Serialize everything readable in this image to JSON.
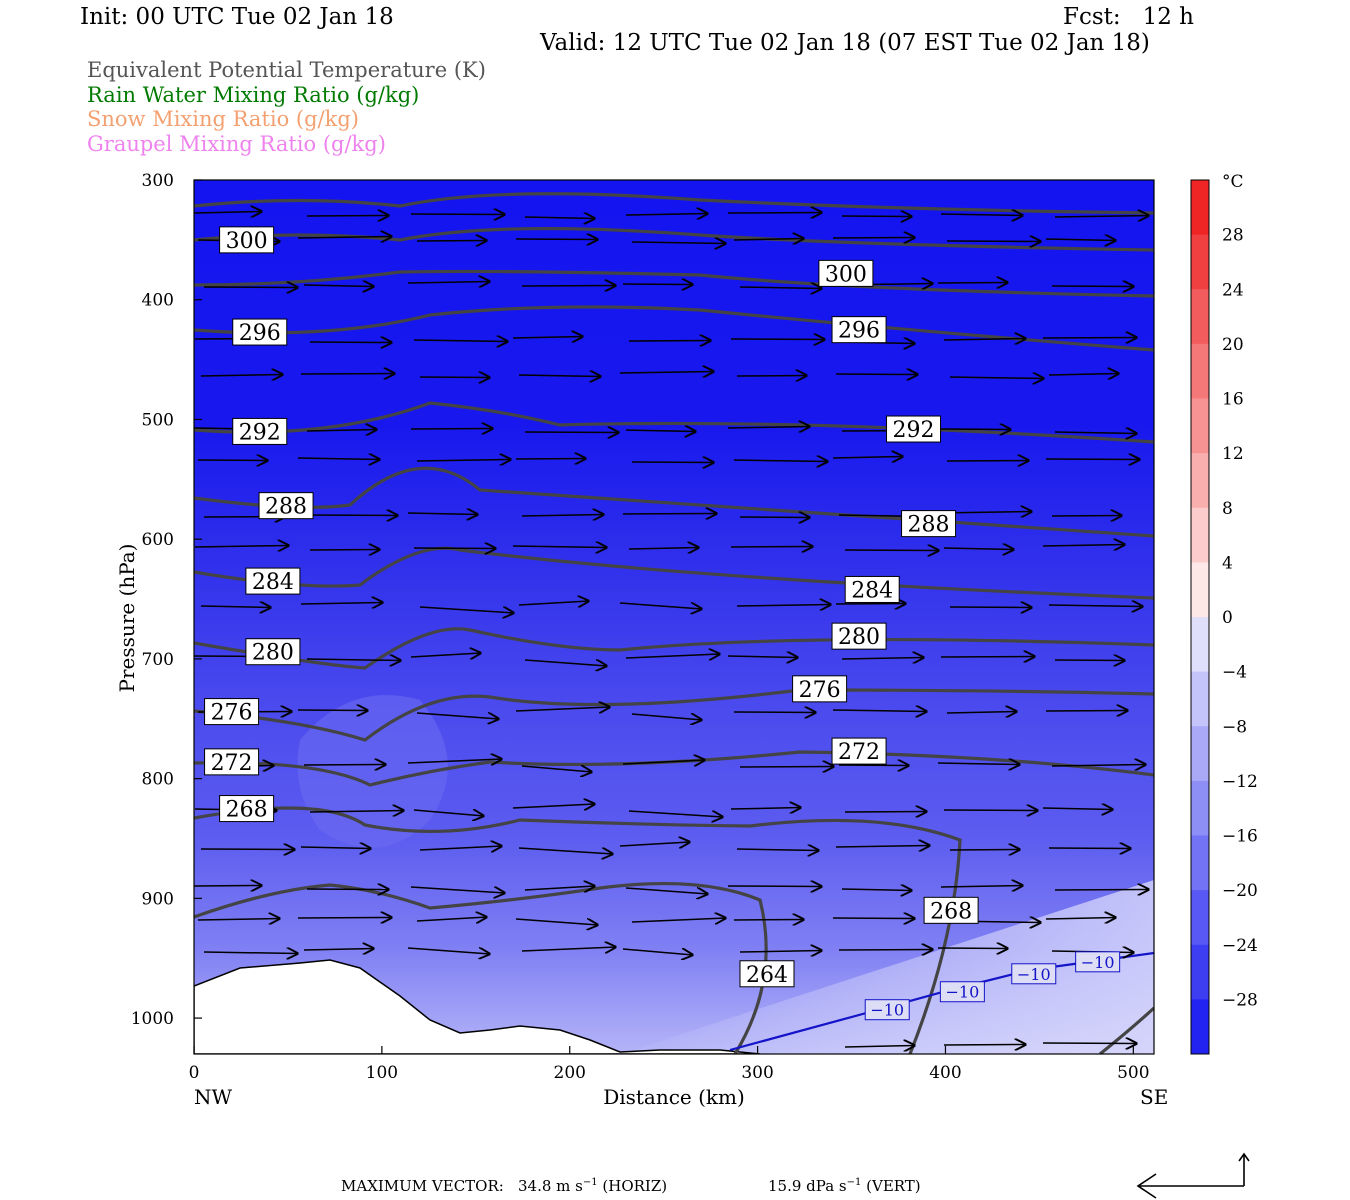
{
  "header": {
    "init": "Init: 00 UTC Tue 02 Jan 18",
    "fcst": "Fcst:   12 h",
    "valid": "Valid: 12 UTC Tue 02 Jan 18 (07 EST Tue 02 Jan 18)"
  },
  "legend": [
    {
      "label": "Equivalent Potential Temperature (K)",
      "color": "#555555"
    },
    {
      "label": "Rain Water Mixing Ratio (g/kg)",
      "color": "#007a00"
    },
    {
      "label": "Snow Mixing Ratio (g/kg)",
      "color": "#f4a070"
    },
    {
      "label": "Graupel Mixing Ratio (g/kg)",
      "color": "#ee82ee"
    }
  ],
  "chart_data": {
    "type": "cross-section",
    "xlabel": "Distance (km)",
    "ylabel": "Pressure (hPa)",
    "xlim": [
      0,
      511
    ],
    "ylim": [
      1030,
      300
    ],
    "x_ticks": [
      "0",
      "100",
      "200",
      "300",
      "400",
      "500"
    ],
    "y_ticks": [
      "300",
      "400",
      "500",
      "600",
      "700",
      "800",
      "900",
      "1000"
    ],
    "x_end_labels": {
      "left": "NW",
      "right": "SE"
    },
    "colorbar": {
      "unit": "°C",
      "min": -32,
      "max": 32,
      "step": 4,
      "labels": [
        "28",
        "24",
        "20",
        "16",
        "12",
        "8",
        "4",
        "0",
        "−4",
        "−8",
        "−12",
        "−16",
        "−20",
        "−24",
        "−28"
      ]
    },
    "theta_e_contour_labels": [
      {
        "text": "300",
        "x": 28,
        "p": 350
      },
      {
        "text": "300",
        "x": 347,
        "p": 378
      },
      {
        "text": "296",
        "x": 35,
        "p": 427
      },
      {
        "text": "296",
        "x": 354,
        "p": 425
      },
      {
        "text": "292",
        "x": 35,
        "p": 510
      },
      {
        "text": "292",
        "x": 383,
        "p": 508
      },
      {
        "text": "288",
        "x": 49,
        "p": 572
      },
      {
        "text": "288",
        "x": 391,
        "p": 587
      },
      {
        "text": "284",
        "x": 42,
        "p": 635
      },
      {
        "text": "284",
        "x": 361,
        "p": 642
      },
      {
        "text": "280",
        "x": 42,
        "p": 694
      },
      {
        "text": "280",
        "x": 354,
        "p": 681
      },
      {
        "text": "276",
        "x": 20,
        "p": 744
      },
      {
        "text": "276",
        "x": 333,
        "p": 725
      },
      {
        "text": "272",
        "x": 20,
        "p": 786
      },
      {
        "text": "272",
        "x": 354,
        "p": 777
      },
      {
        "text": "268",
        "x": 28,
        "p": 825
      },
      {
        "text": "268",
        "x": 403,
        "p": 910
      },
      {
        "text": "264",
        "x": 305,
        "p": 963
      }
    ],
    "temperature_contour_labels": [
      {
        "text": "−10",
        "x": 369,
        "p": 993
      },
      {
        "text": "−10",
        "x": 409,
        "p": 978
      },
      {
        "text": "−10",
        "x": 447,
        "p": 963
      },
      {
        "text": "−10",
        "x": 481,
        "p": 953
      }
    ]
  },
  "footer": {
    "max_vector_label": "MAXIMUM VECTOR:",
    "horiz_value": "34.8 m s",
    "horiz_exp": "−1",
    "horiz_tag": "(HORIZ)",
    "vert_value": "15.9 dPa s",
    "vert_exp": "−1",
    "vert_tag": "(VERT)"
  }
}
